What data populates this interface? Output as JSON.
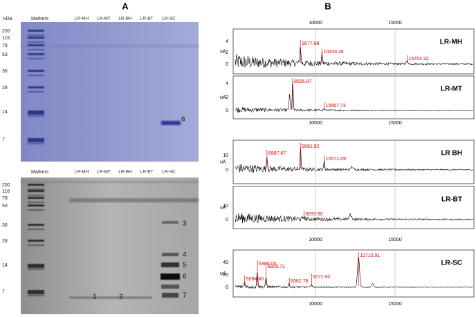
{
  "header": {
    "panel_a": "A",
    "panel_b": "B"
  },
  "gel_top": {
    "unit": "kDa",
    "markers_label": "Markers",
    "lanes": [
      "LR-MH",
      "LR-MT",
      "LR-BH",
      "LR-BT",
      "LR-SC"
    ],
    "marker_sizes": [
      "200",
      "116",
      "78",
      "53",
      "36",
      "28",
      "14",
      "7"
    ],
    "band_labels": [
      "6"
    ]
  },
  "gel_bottom": {
    "markers_label": "Markers",
    "lanes": [
      "LR-MH",
      "LR-MT",
      "LR-BH",
      "LR-BT",
      "LR-SC"
    ],
    "marker_sizes": [
      "200",
      "116",
      "78",
      "53",
      "36",
      "28",
      "14",
      "7"
    ],
    "band_labels": [
      "3",
      "4",
      "5",
      "6",
      "7",
      "1",
      "2"
    ]
  },
  "spectra": {
    "x_ticks": [
      "10000",
      "15000"
    ],
    "y_unit": "uA",
    "panels": [
      {
        "name": "LR-MH",
        "yticks": [
          "4",
          "2",
          "0"
        ],
        "peaks": [
          "9077.88",
          "10433.26",
          "15754.32"
        ]
      },
      {
        "name": "LR-MT",
        "yticks": [
          "4",
          "2",
          "0"
        ],
        "peaks": [
          "8595.87",
          "10567.73"
        ]
      },
      {
        "name": "LR BH",
        "yticks": [
          "10",
          "0"
        ],
        "peaks": [
          "6987.67",
          "9081.92",
          "10571.09"
        ]
      },
      {
        "name": "LR-BT",
        "yticks": [
          "10",
          "0"
        ],
        "peaks": [
          "9297.80"
        ]
      },
      {
        "name": "LR-SC",
        "yticks": [
          "40",
          "20",
          "0"
        ],
        "peaks": [
          "5594.60",
          "6385.05",
          "6929.71",
          "8382.78",
          "9771.92",
          "12715.91"
        ]
      }
    ]
  }
}
